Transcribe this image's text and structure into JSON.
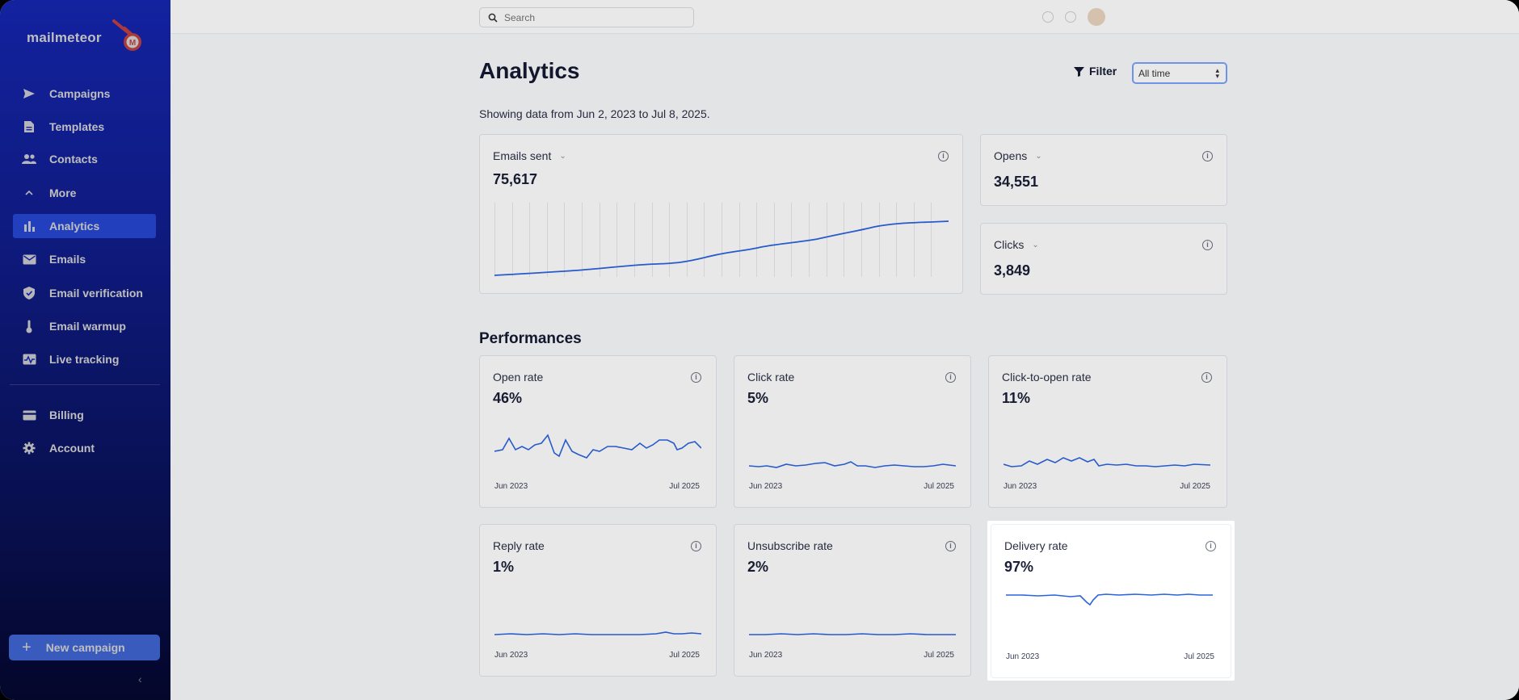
{
  "app": {
    "logo_text": "mailmeteor"
  },
  "sidebar": {
    "items": [
      {
        "label": "Campaigns",
        "icon": "send-icon"
      },
      {
        "label": "Templates",
        "icon": "document-icon"
      },
      {
        "label": "Contacts",
        "icon": "people-icon"
      },
      {
        "label": "More",
        "icon": "chevron-up-icon"
      },
      {
        "label": "Analytics",
        "icon": "bar-chart-icon",
        "active": true
      },
      {
        "label": "Emails",
        "icon": "mail-icon"
      },
      {
        "label": "Email verification",
        "icon": "shield-check-icon"
      },
      {
        "label": "Email warmup",
        "icon": "thermometer-icon"
      },
      {
        "label": "Live tracking",
        "icon": "pulse-icon"
      }
    ],
    "bottom_items": [
      {
        "label": "Billing",
        "icon": "credit-card-icon"
      },
      {
        "label": "Account",
        "icon": "gear-icon"
      }
    ],
    "new_campaign_label": "New campaign",
    "collapse_glyph": "‹"
  },
  "topbar": {
    "search_placeholder": "Search"
  },
  "header": {
    "title": "Analytics",
    "filter_label": "Filter",
    "range_selected": "All time",
    "subtitle": "Showing data from Jun 2, 2023 to Jul 8, 2025."
  },
  "overview": {
    "emails_sent": {
      "label": "Emails sent",
      "value": "75,617"
    },
    "opens": {
      "label": "Opens",
      "value": "34,551"
    },
    "clicks": {
      "label": "Clicks",
      "value": "3,849"
    }
  },
  "performances": {
    "title": "Performances",
    "start_tick": "Jun 2023",
    "end_tick": "Jul 2025",
    "cards": [
      {
        "label": "Open rate",
        "value": "46%"
      },
      {
        "label": "Click rate",
        "value": "5%"
      },
      {
        "label": "Click-to-open rate",
        "value": "11%"
      },
      {
        "label": "Reply rate",
        "value": "1%"
      },
      {
        "label": "Unsubscribe rate",
        "value": "2%"
      },
      {
        "label": "Delivery rate",
        "value": "97%"
      }
    ]
  },
  "colors": {
    "accent": "#2f57ff",
    "line": "#2b63e0",
    "sidebar_top": "#1b2fd6",
    "sidebar_bottom": "#060a3a"
  }
}
